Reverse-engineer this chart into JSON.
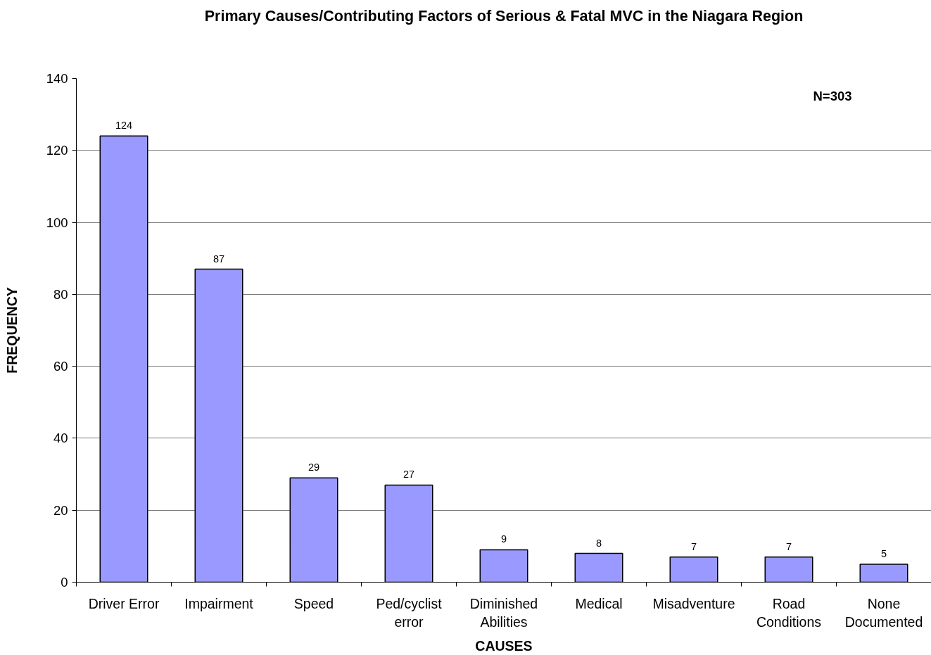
{
  "chart_data": {
    "type": "bar",
    "title": "Primary Causes/Contributing Factors of Serious & Fatal MVC in the Niagara Region",
    "xlabel": "CAUSES",
    "ylabel": "FREQUENCY",
    "categories": [
      "Driver Error",
      "Impairment",
      "Speed",
      "Ped/cyclist\nerror",
      "Diminished\nAbilities",
      "Medical",
      "Misadventure",
      "Road\nConditions",
      "None\nDocumented"
    ],
    "values": [
      124,
      87,
      29,
      27,
      9,
      8,
      7,
      7,
      5
    ],
    "color": "#9999ff",
    "ylim": [
      0,
      140
    ],
    "yticks": [
      0,
      20,
      40,
      60,
      80,
      100,
      120,
      140
    ],
    "grid": "y",
    "data_labels": true,
    "annotations": [
      "N=303"
    ]
  }
}
